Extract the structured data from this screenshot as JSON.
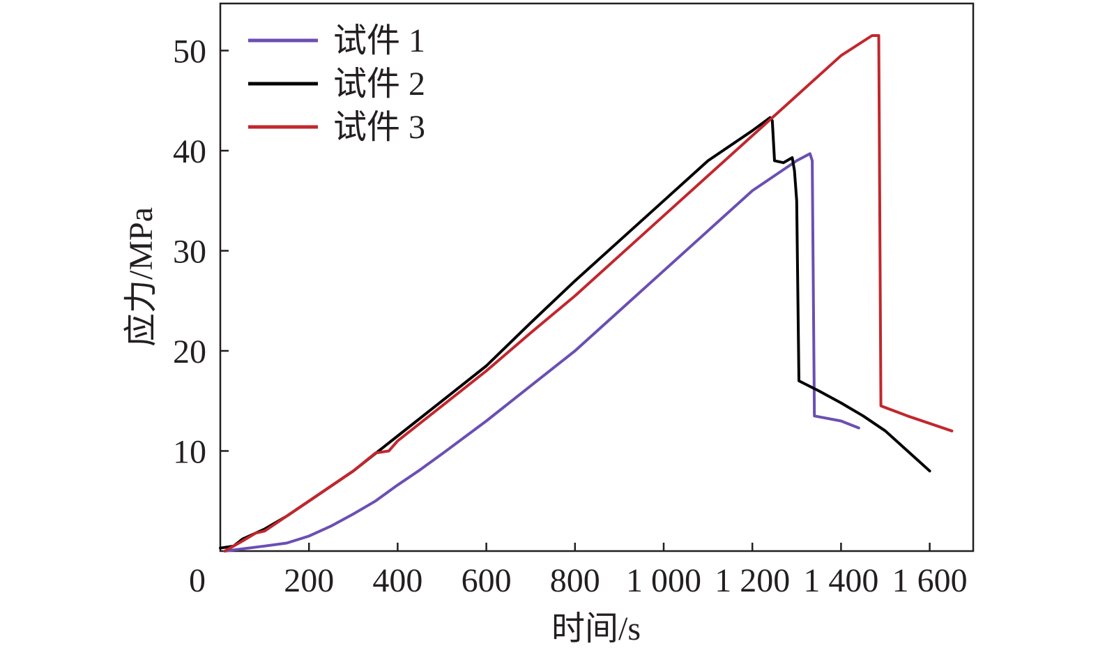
{
  "chart_data": {
    "type": "line",
    "title": "",
    "xlabel": "时间/s",
    "ylabel": "应力/MPa",
    "xlim": [
      0,
      1700
    ],
    "ylim": [
      0,
      55
    ],
    "x_ticks": [
      {
        "value": 0,
        "label": "0"
      },
      {
        "value": 200,
        "label": "200"
      },
      {
        "value": 400,
        "label": "400"
      },
      {
        "value": 600,
        "label": "600"
      },
      {
        "value": 800,
        "label": "800"
      },
      {
        "value": 1000,
        "label": "1 000"
      },
      {
        "value": 1200,
        "label": "1 200"
      },
      {
        "value": 1400,
        "label": "1 400"
      },
      {
        "value": 1600,
        "label": "1 600"
      }
    ],
    "y_ticks": [
      {
        "value": 10,
        "label": "10"
      },
      {
        "value": 20,
        "label": "20"
      },
      {
        "value": 30,
        "label": "30"
      },
      {
        "value": 40,
        "label": "40"
      },
      {
        "value": 50,
        "label": "50"
      }
    ],
    "grid": false,
    "legend_position": "top-left",
    "series": [
      {
        "name": "试件 1",
        "color": "#6a4fb3",
        "points": [
          [
            10,
            0
          ],
          [
            100,
            0.5
          ],
          [
            150,
            0.8
          ],
          [
            200,
            1.5
          ],
          [
            250,
            2.5
          ],
          [
            300,
            3.7
          ],
          [
            350,
            5.0
          ],
          [
            400,
            6.6
          ],
          [
            450,
            8.1
          ],
          [
            500,
            9.7
          ],
          [
            600,
            13.0
          ],
          [
            700,
            16.5
          ],
          [
            800,
            20.0
          ],
          [
            900,
            24.0
          ],
          [
            1000,
            28.0
          ],
          [
            1100,
            32.0
          ],
          [
            1200,
            36.0
          ],
          [
            1250,
            37.5
          ],
          [
            1300,
            39.0
          ],
          [
            1330,
            39.7
          ],
          [
            1335,
            39.0
          ],
          [
            1340,
            13.5
          ],
          [
            1400,
            13.0
          ],
          [
            1440,
            12.3
          ]
        ]
      },
      {
        "name": "试件 2",
        "color": "#000000",
        "points": [
          [
            0,
            0.3
          ],
          [
            30,
            0.5
          ],
          [
            50,
            1.2
          ],
          [
            100,
            2.2
          ],
          [
            150,
            3.5
          ],
          [
            200,
            5.0
          ],
          [
            300,
            8.0
          ],
          [
            400,
            11.5
          ],
          [
            500,
            15.0
          ],
          [
            600,
            18.5
          ],
          [
            700,
            22.8
          ],
          [
            800,
            27.0
          ],
          [
            900,
            31.0
          ],
          [
            1000,
            35.0
          ],
          [
            1100,
            39.0
          ],
          [
            1200,
            42.0
          ],
          [
            1240,
            43.3
          ],
          [
            1245,
            43.0
          ],
          [
            1250,
            39.0
          ],
          [
            1270,
            38.8
          ],
          [
            1290,
            39.3
          ],
          [
            1295,
            38.0
          ],
          [
            1300,
            35.0
          ],
          [
            1305,
            17.0
          ],
          [
            1350,
            16.0
          ],
          [
            1400,
            14.8
          ],
          [
            1450,
            13.5
          ],
          [
            1500,
            12.0
          ],
          [
            1550,
            10.0
          ],
          [
            1600,
            8.0
          ]
        ]
      },
      {
        "name": "试件 3",
        "color": "#c1272d",
        "points": [
          [
            10,
            0
          ],
          [
            50,
            1.0
          ],
          [
            80,
            1.8
          ],
          [
            100,
            2.0
          ],
          [
            150,
            3.5
          ],
          [
            200,
            5.0
          ],
          [
            300,
            8.0
          ],
          [
            350,
            9.8
          ],
          [
            380,
            10.0
          ],
          [
            400,
            11.0
          ],
          [
            500,
            14.5
          ],
          [
            600,
            18.0
          ],
          [
            700,
            21.8
          ],
          [
            800,
            25.5
          ],
          [
            900,
            29.5
          ],
          [
            1000,
            33.5
          ],
          [
            1100,
            37.5
          ],
          [
            1200,
            41.5
          ],
          [
            1300,
            45.5
          ],
          [
            1400,
            49.5
          ],
          [
            1470,
            51.5
          ],
          [
            1485,
            51.5
          ],
          [
            1490,
            14.5
          ],
          [
            1550,
            13.5
          ],
          [
            1650,
            12.0
          ]
        ]
      }
    ]
  }
}
